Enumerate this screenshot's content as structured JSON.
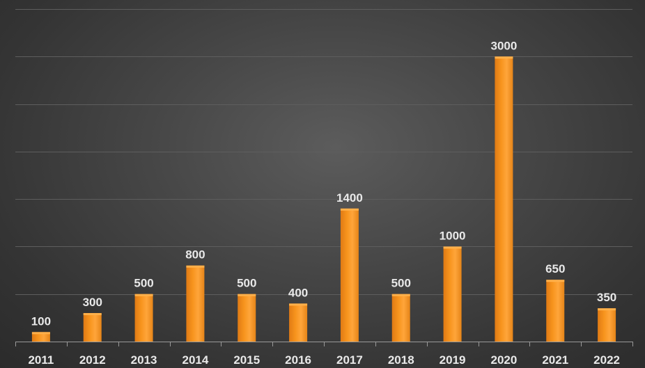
{
  "chart_data": {
    "type": "bar",
    "categories": [
      "2011",
      "2012",
      "2013",
      "2014",
      "2015",
      "2016",
      "2017",
      "2018",
      "2019",
      "2020",
      "2021",
      "2022"
    ],
    "values": [
      100,
      300,
      500,
      800,
      500,
      400,
      1400,
      500,
      1000,
      3000,
      650,
      350
    ],
    "title": "",
    "xlabel": "",
    "ylabel": "",
    "ylim": [
      0,
      3500
    ],
    "grid": true,
    "legend": "none",
    "data_labels": true,
    "colors": {
      "bar": "#f7941d",
      "bar_highlight": "#ffb04a",
      "bar_shadow": "#d7730f",
      "label": "#e9e9e9",
      "gridline": "#5e5e5e",
      "background": "#404040"
    }
  }
}
